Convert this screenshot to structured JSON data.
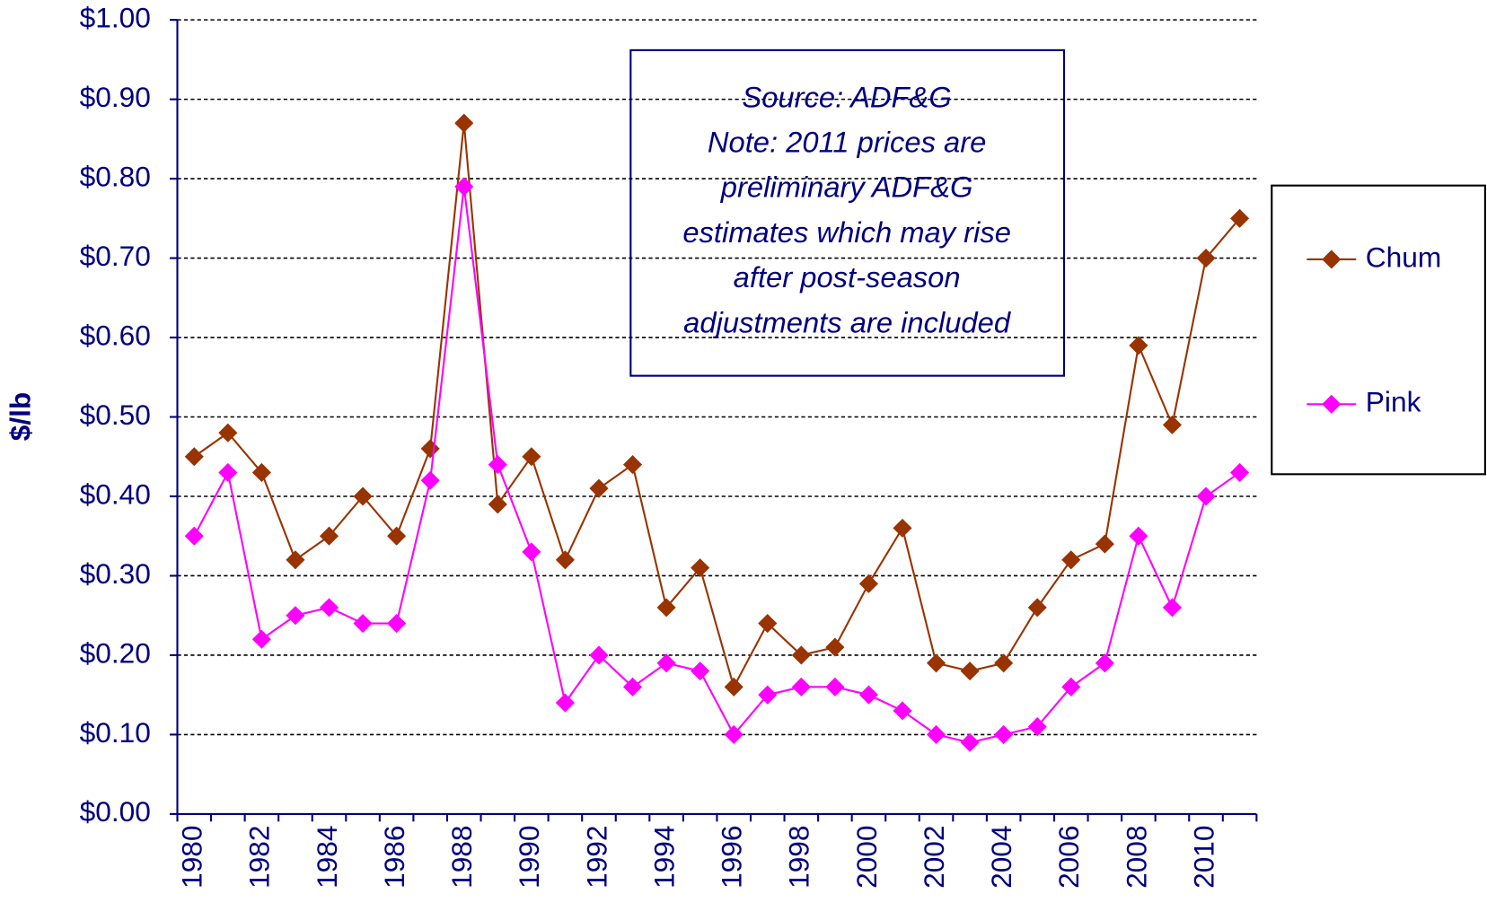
{
  "chart_data": {
    "type": "line",
    "y_label": "$/lb",
    "annotation": [
      "Source:  ADF&G",
      "Note:  2011 prices are",
      "preliminary ADF&G",
      "estimates which may rise",
      "after post-season",
      "adjustments are included"
    ],
    "categories": [
      "1980",
      null,
      "1982",
      null,
      "1984",
      null,
      "1986",
      null,
      "1988",
      null,
      "1990",
      null,
      "1992",
      null,
      "1994",
      null,
      "1996",
      null,
      "1998",
      null,
      "2000",
      null,
      "2002",
      null,
      "2004",
      null,
      "2006",
      null,
      "2008",
      null,
      "2010",
      null
    ],
    "series": [
      {
        "name": "Chum",
        "color": "#993300",
        "values": [
          0.45,
          0.48,
          0.43,
          0.32,
          0.35,
          0.4,
          0.35,
          0.46,
          0.87,
          0.39,
          0.45,
          0.32,
          0.41,
          0.44,
          0.26,
          0.31,
          0.16,
          0.24,
          0.2,
          0.21,
          0.29,
          0.36,
          0.19,
          0.18,
          0.19,
          0.26,
          0.32,
          0.34,
          0.59,
          0.49,
          0.7,
          0.75
        ]
      },
      {
        "name": "Pink",
        "color": "#ff00ff",
        "values": [
          0.35,
          0.43,
          0.22,
          0.25,
          0.26,
          0.24,
          0.24,
          0.42,
          0.79,
          0.44,
          0.33,
          0.14,
          0.2,
          0.16,
          0.19,
          0.18,
          0.1,
          0.15,
          0.16,
          0.16,
          0.15,
          0.13,
          0.1,
          0.09,
          0.1,
          0.11,
          0.16,
          0.19,
          0.35,
          0.26,
          0.4,
          0.43
        ]
      }
    ],
    "ylim": [
      0,
      1
    ],
    "yticks": [
      {
        "value": 0,
        "label": "$0.00"
      },
      {
        "value": 0.1,
        "label": "$0.10"
      },
      {
        "value": 0.2,
        "label": "$0.20"
      },
      {
        "value": 0.3,
        "label": "$0.30"
      },
      {
        "value": 0.4,
        "label": "$0.40"
      },
      {
        "value": 0.5,
        "label": "$0.50"
      },
      {
        "value": 0.6,
        "label": "$0.60"
      },
      {
        "value": 0.7,
        "label": "$0.70"
      },
      {
        "value": 0.8,
        "label": "$0.80"
      },
      {
        "value": 0.9,
        "label": "$0.90"
      },
      {
        "value": 1,
        "label": "$1.00"
      }
    ],
    "grid": true,
    "legend": "right"
  }
}
